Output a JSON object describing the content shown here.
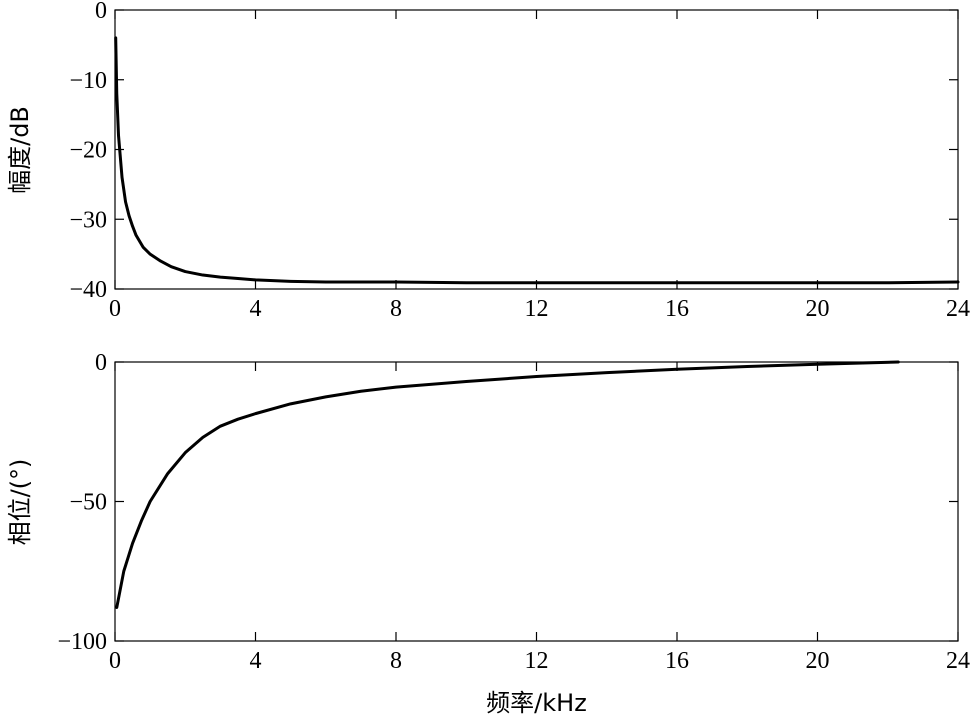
{
  "chart_data": [
    {
      "type": "line",
      "ylabel": "幅度/dB",
      "xlabel": "",
      "xlim": [
        0,
        24
      ],
      "ylim": [
        -40,
        0
      ],
      "xticks": [
        0,
        4,
        8,
        12,
        16,
        20,
        24
      ],
      "yticks": [
        0,
        -10,
        -20,
        -30,
        -40
      ],
      "xtick_labels": [
        "0",
        "4",
        "8",
        "12",
        "16",
        "20",
        "24"
      ],
      "ytick_labels": [
        "0",
        "−10",
        "−20",
        "−30",
        "−40"
      ],
      "grid": false,
      "series": [
        {
          "x": [
            0.02,
            0.05,
            0.1,
            0.2,
            0.3,
            0.4,
            0.5,
            0.6,
            0.8,
            1.0,
            1.3,
            1.6,
            2.0,
            2.5,
            3.0,
            3.5,
            4.0,
            5.0,
            6.0,
            8.0,
            10.0,
            12.0,
            14.0,
            16.0,
            18.0,
            20.0,
            22.0,
            24.0
          ],
          "y": [
            -4,
            -12,
            -18,
            -24,
            -27.5,
            -29.5,
            -31,
            -32.3,
            -34,
            -35,
            -36,
            -36.8,
            -37.5,
            -38,
            -38.3,
            -38.5,
            -38.7,
            -38.9,
            -39,
            -39,
            -39.1,
            -39.1,
            -39.1,
            -39.1,
            -39.1,
            -39.1,
            -39.1,
            -39
          ]
        }
      ]
    },
    {
      "type": "line",
      "ylabel": "相位/(°)",
      "xlabel": "频率/kHz",
      "xlim": [
        0,
        24
      ],
      "ylim": [
        -100,
        0
      ],
      "xticks": [
        0,
        4,
        8,
        12,
        16,
        20,
        24
      ],
      "yticks": [
        0,
        -50,
        -100
      ],
      "xtick_labels": [
        "0",
        "4",
        "8",
        "12",
        "16",
        "20",
        "24"
      ],
      "ytick_labels": [
        "0",
        "−50",
        "−100"
      ],
      "grid": false,
      "series": [
        {
          "x": [
            0.05,
            0.25,
            0.5,
            0.75,
            1.0,
            1.5,
            2.0,
            2.5,
            3.0,
            3.5,
            4.0,
            5.0,
            6.0,
            7.0,
            8.0,
            10.0,
            12.0,
            14.0,
            16.0,
            18.0,
            20.0,
            22.3
          ],
          "y": [
            -88,
            -75,
            -65,
            -57,
            -50,
            -40,
            -32.5,
            -27,
            -23,
            -20.5,
            -18.5,
            -15,
            -12.5,
            -10.5,
            -9,
            -7,
            -5.2,
            -3.8,
            -2.6,
            -1.6,
            -0.8,
            0
          ]
        }
      ]
    }
  ]
}
